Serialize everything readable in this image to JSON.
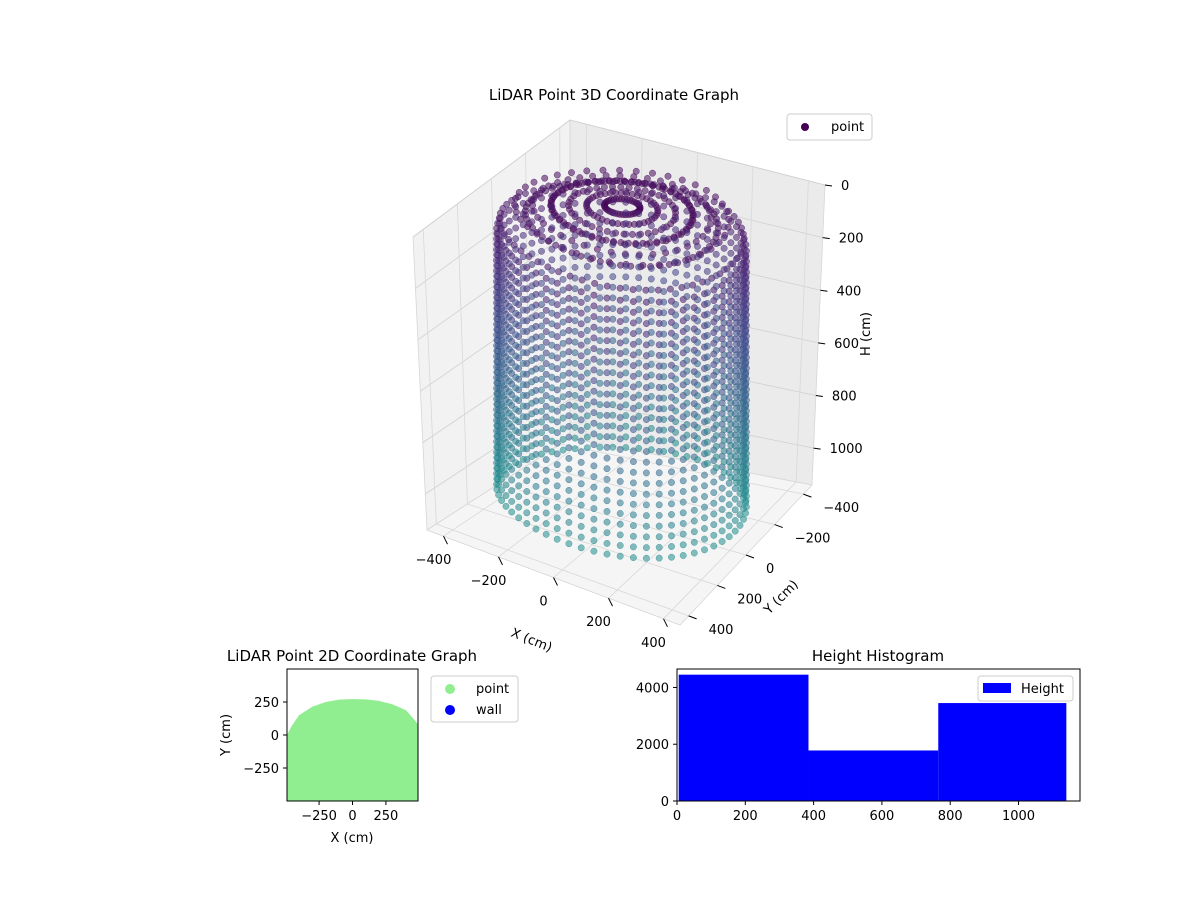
{
  "chart_data": [
    {
      "type": "scatter3d",
      "title": "LiDAR Point 3D Coordinate Graph",
      "xlabel": "X (cm)",
      "ylabel": "Y (cm)",
      "zlabel": "H (cm)",
      "x_ticks": [
        -400,
        -200,
        0,
        200,
        400
      ],
      "y_ticks": [
        -400,
        -200,
        0,
        200,
        400
      ],
      "z_ticks": [
        0,
        200,
        400,
        600,
        800,
        1000
      ],
      "xlim": [
        -460,
        460
      ],
      "ylim": [
        -460,
        460
      ],
      "zlim": [
        0,
        1140
      ],
      "z_inverted": true,
      "colormap": "viridis (purple to teal by height)",
      "grid": true,
      "legend": {
        "position": "top-right",
        "entries": [
          {
            "label": "point",
            "color": "#440154"
          }
        ]
      },
      "shape": "dome-shaped ceiling and curved walls of points, radius about 450 cm, height 0 to about 1100 cm"
    },
    {
      "type": "scatter",
      "title": "LiDAR Point 2D Coordinate Graph",
      "xlabel": "X (cm)",
      "ylabel": "Y (cm)",
      "x_ticks": [
        -250,
        0,
        250
      ],
      "y_ticks": [
        -250,
        0,
        250
      ],
      "xlim": [
        -490,
        490
      ],
      "ylim": [
        -500,
        500
      ],
      "legend": {
        "position": "outside-right",
        "entries": [
          {
            "label": "point",
            "color": "#90ee90"
          },
          {
            "label": "wall",
            "color": "#0000ff"
          }
        ]
      },
      "region_top_profile": [
        [
          -490,
          0
        ],
        [
          -460,
          60
        ],
        [
          -400,
          150
        ],
        [
          -300,
          215
        ],
        [
          -200,
          250
        ],
        [
          -100,
          268
        ],
        [
          0,
          272
        ],
        [
          100,
          270
        ],
        [
          200,
          258
        ],
        [
          300,
          232
        ],
        [
          400,
          188
        ],
        [
          460,
          120
        ],
        [
          490,
          80
        ]
      ]
    },
    {
      "type": "histogram",
      "title": "Height Histogram",
      "xlabel": "",
      "ylabel": "",
      "x_ticks": [
        0,
        200,
        400,
        600,
        800,
        1000
      ],
      "y_ticks": [
        0,
        2000,
        4000
      ],
      "xlim": [
        0,
        1180
      ],
      "ylim": [
        0,
        4650
      ],
      "bins": [
        {
          "start": 5,
          "end": 385,
          "count": 4450
        },
        {
          "start": 385,
          "end": 765,
          "count": 1780
        },
        {
          "start": 765,
          "end": 1140,
          "count": 3450
        }
      ],
      "bar_color": "#0000ff",
      "legend": {
        "position": "top-right",
        "entries": [
          {
            "label": "Height",
            "color": "#0000ff"
          }
        ]
      }
    }
  ]
}
